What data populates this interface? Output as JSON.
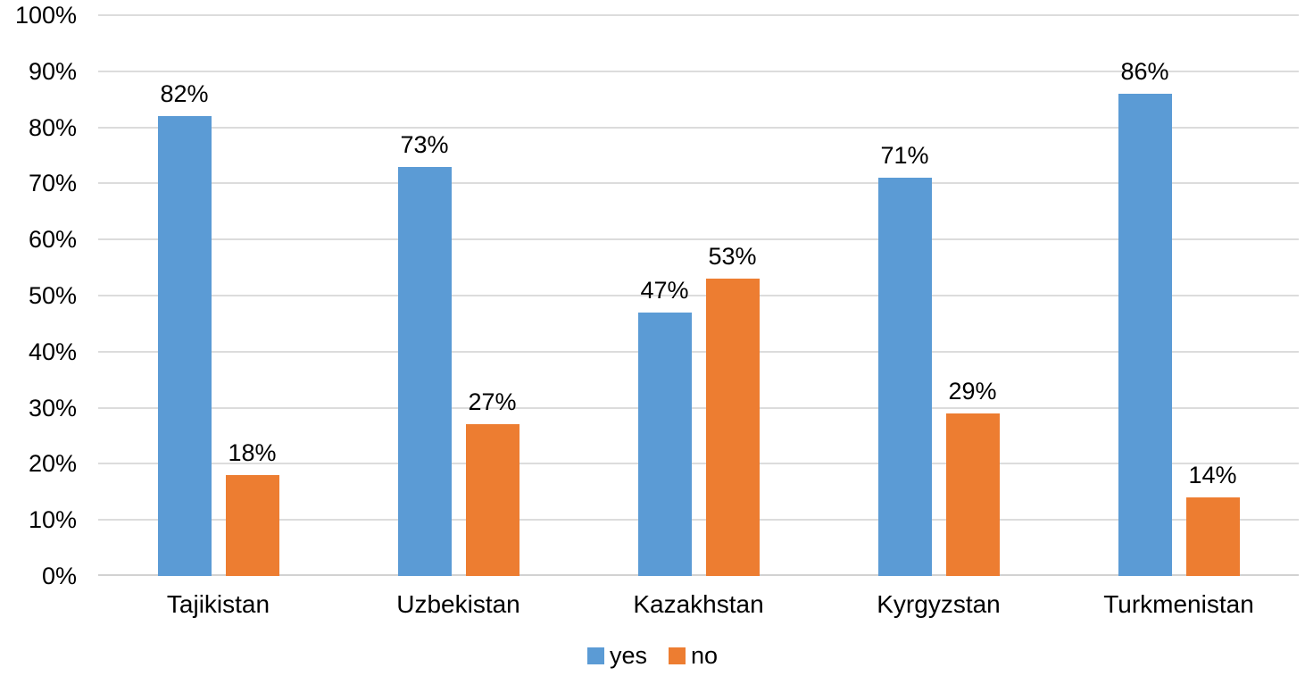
{
  "chart_data": {
    "type": "bar",
    "title": "",
    "xlabel": "",
    "ylabel": "",
    "categories": [
      "Tajikistan",
      "Uzbekistan",
      "Kazakhstan",
      "Kyrgyzstan",
      "Turkmenistan"
    ],
    "series": [
      {
        "name": "yes",
        "color": "#5B9BD5",
        "values": [
          82,
          73,
          47,
          71,
          86
        ]
      },
      {
        "name": "no",
        "color": "#ED7D31",
        "values": [
          18,
          27,
          53,
          29,
          14
        ]
      }
    ],
    "data_labels": [
      [
        "82%",
        "73%",
        "47%",
        "71%",
        "86%"
      ],
      [
        "18%",
        "27%",
        "53%",
        "29%",
        "14%"
      ]
    ],
    "ylim": [
      0,
      100
    ],
    "y_tick_step": 10,
    "y_tick_labels": [
      "0%",
      "10%",
      "20%",
      "30%",
      "40%",
      "50%",
      "60%",
      "70%",
      "80%",
      "90%",
      "100%"
    ],
    "grid": true,
    "legend_position": "bottom",
    "legend_entries": [
      "yes",
      "no"
    ]
  },
  "colors": {
    "background": "#FFFFFF",
    "gridline": "#DCDCDC",
    "axis_line": "#D2D2D2",
    "text": "#000000",
    "series_yes": "#5B9BD5",
    "series_no": "#ED7D31"
  }
}
